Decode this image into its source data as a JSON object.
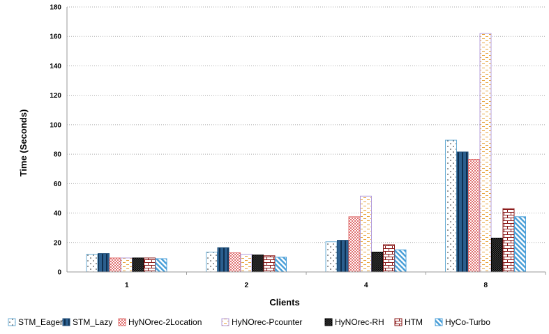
{
  "chart_data": {
    "type": "bar",
    "title": "",
    "xlabel": "Clients",
    "ylabel": "Time (Seconds)",
    "ylim": [
      0,
      180
    ],
    "ytick_step": 20,
    "grid": "horizontal dotted",
    "legend_position": "bottom",
    "categories": [
      "1",
      "2",
      "4",
      "8"
    ],
    "series": [
      {
        "name": "STM_Eager",
        "values": [
          12,
          13.5,
          20.5,
          89.5
        ],
        "color": "#6baed6",
        "pattern": "dots"
      },
      {
        "name": "STM_Lazy",
        "values": [
          12.5,
          16.5,
          21.5,
          81.5
        ],
        "color": "#1f4e79",
        "pattern": "solid-stripe"
      },
      {
        "name": "HyNOrec-2Location",
        "values": [
          9.5,
          13,
          37.5,
          76.5
        ],
        "color": "#e07070",
        "pattern": "checker"
      },
      {
        "name": "HyNOrec-Pcounter",
        "values": [
          9.5,
          12,
          51.5,
          162
        ],
        "color": "#b39ddb",
        "pattern": "dashes"
      },
      {
        "name": "HyNOrec-RH",
        "values": [
          9.5,
          11.5,
          13.5,
          23
        ],
        "color": "#000000",
        "pattern": "dense-checker"
      },
      {
        "name": "HTM",
        "values": [
          9.5,
          11,
          18.5,
          43
        ],
        "color": "#8b1a1a",
        "pattern": "brick"
      },
      {
        "name": "HyCo-Turbo",
        "values": [
          9,
          10,
          15,
          37.5
        ],
        "color": "#4a9fd8",
        "pattern": "diagonal"
      }
    ]
  }
}
